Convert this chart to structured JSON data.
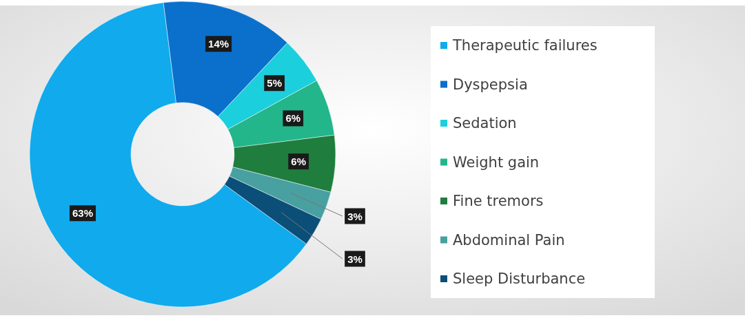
{
  "chart_data": {
    "type": "donut",
    "categories": [
      "Therapeutic failures",
      "Dyspepsia",
      "Sedation",
      "Weight gain",
      "Fine tremors",
      "Abdominal Pain",
      "Sleep Disturbance"
    ],
    "values": [
      63,
      14,
      5,
      6,
      6,
      3,
      3
    ],
    "value_labels": [
      "63%",
      "14%",
      "5%",
      "6%",
      "6%",
      "3%",
      "3%"
    ],
    "colors": [
      "#10aaed",
      "#0a70cc",
      "#1ccfdd",
      "#22b68a",
      "#1f7d3e",
      "#48a0a0",
      "#0b4e78"
    ],
    "legend": "right"
  }
}
